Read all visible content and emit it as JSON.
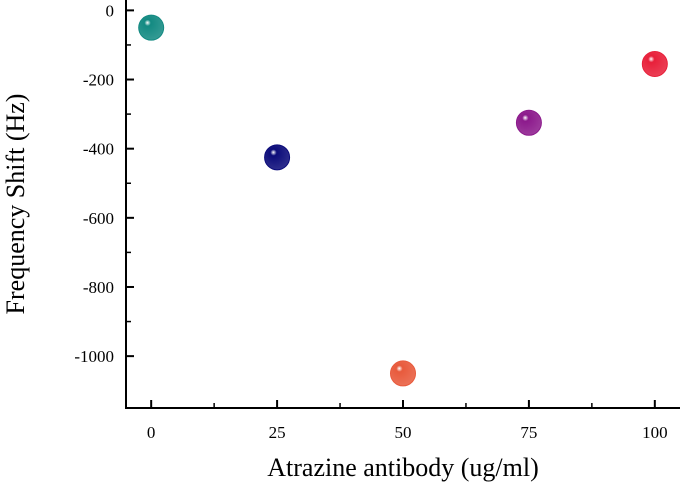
{
  "chart_data": {
    "type": "scatter",
    "x_label": "Atrazine antibody (ug/ml)",
    "y_label": "Frequency Shift (Hz)",
    "x": [
      0,
      25,
      50,
      75,
      100
    ],
    "values": [
      -50,
      -425,
      -1050,
      -325,
      -155
    ],
    "colors": [
      "#138a82",
      "#0c0c7a",
      "#e85a3c",
      "#8c1a8c",
      "#e8203a"
    ],
    "xlim": [
      -5,
      105
    ],
    "xticks": [
      0,
      25,
      50,
      75,
      100
    ],
    "ylim": [
      -1150,
      30
    ],
    "yticks": [
      0,
      -200,
      -400,
      -600,
      -800,
      -1000
    ],
    "grid": false
  }
}
